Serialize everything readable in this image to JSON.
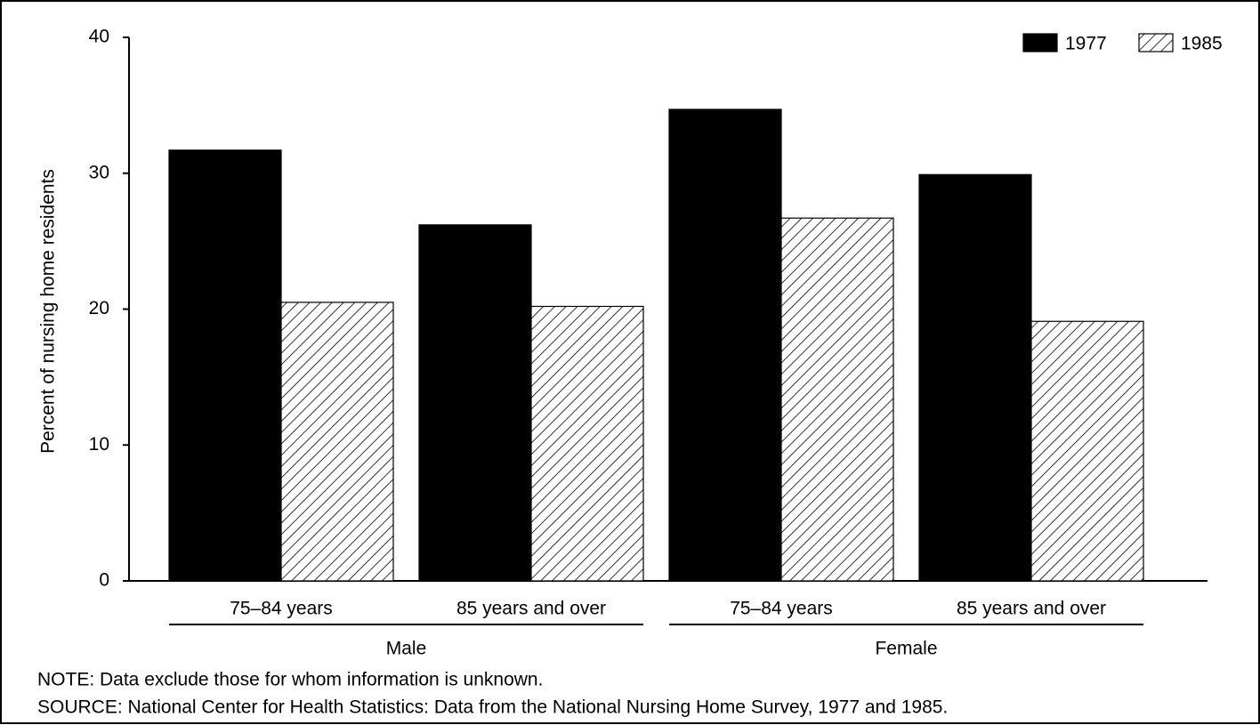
{
  "chart_data": {
    "type": "bar",
    "y_label": "Percent of nursing home residents",
    "groups": [
      {
        "name": "Male",
        "categories": [
          "75–84 years",
          "85 years and over"
        ]
      },
      {
        "name": "Female",
        "categories": [
          "75–84 years",
          "85 years and over"
        ]
      }
    ],
    "series": [
      {
        "name": "1977",
        "color": "#000000",
        "fill": "solid",
        "values": [
          31.7,
          26.2,
          34.7,
          29.9
        ]
      },
      {
        "name": "1985",
        "color": "#000000",
        "fill": "hatch",
        "values": [
          20.5,
          20.2,
          26.7,
          19.1
        ]
      }
    ],
    "ylim": [
      0,
      40
    ],
    "yticks": [
      0,
      10,
      20,
      30,
      40
    ],
    "grid": false,
    "legend": "top-right",
    "note": "NOTE: Data exclude those for whom information is unknown.",
    "source": "SOURCE: National Center for Health Statistics: Data from the National Nursing Home Survey, 1977 and 1985."
  }
}
